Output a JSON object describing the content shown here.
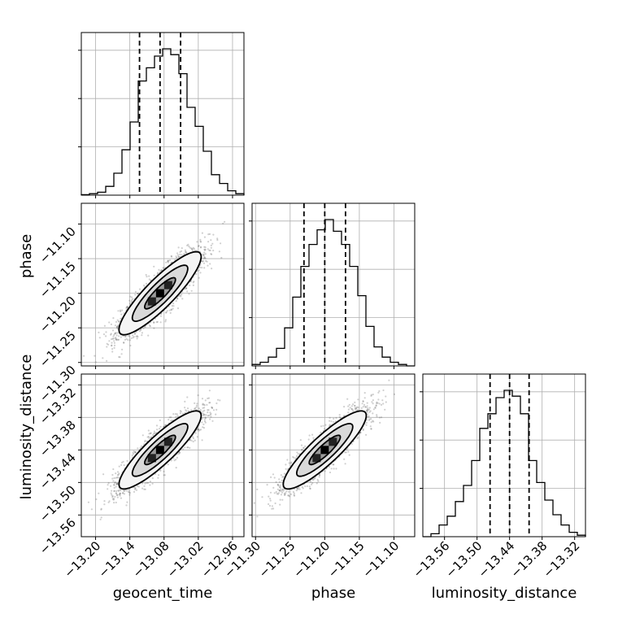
{
  "chart_data": {
    "type": "corner",
    "parameters": [
      "geocent_time",
      "phase",
      "luminosity_distance"
    ],
    "axes": {
      "geocent_time": {
        "label": "geocent_time",
        "range": [
          -13.225,
          -12.94
        ],
        "ticks": [
          -13.2,
          -13.14,
          -13.08,
          -13.02,
          -12.96
        ],
        "tick_labels": [
          "−13.20",
          "−13.14",
          "−13.08",
          "−13.02",
          "−12.96"
        ]
      },
      "phase": {
        "label": "phase",
        "range": [
          -11.305,
          -11.07
        ],
        "ticks": [
          -11.3,
          -11.25,
          -11.2,
          -11.15,
          -11.1
        ],
        "tick_labels": [
          "−11.30",
          "−11.25",
          "−11.20",
          "−11.15",
          "−11.10"
        ]
      },
      "luminosity_distance": {
        "label": "luminosity_distance",
        "range": [
          -13.6,
          -13.3
        ],
        "ticks": [
          -13.56,
          -13.5,
          -13.44,
          -13.38,
          -13.32
        ],
        "tick_labels": [
          "−13.56",
          "−13.50",
          "−13.44",
          "−13.38",
          "−13.32"
        ]
      }
    },
    "marginals": [
      {
        "parameter": "geocent_time",
        "median": -13.087,
        "quantiles": [
          -13.123,
          -13.087,
          -13.051
        ],
        "histogram": [
          0.003,
          0.01,
          0.02,
          0.06,
          0.15,
          0.31,
          0.5,
          0.78,
          0.87,
          0.95,
          1.0,
          0.96,
          0.83,
          0.6,
          0.47,
          0.3,
          0.14,
          0.08,
          0.03,
          0.01
        ]
      },
      {
        "parameter": "phase",
        "median": -11.2,
        "quantiles": [
          -11.23,
          -11.2,
          -11.17
        ],
        "histogram": [
          0.01,
          0.025,
          0.06,
          0.12,
          0.26,
          0.47,
          0.68,
          0.83,
          0.93,
          1.0,
          0.92,
          0.83,
          0.68,
          0.48,
          0.27,
          0.13,
          0.06,
          0.025,
          0.01,
          0.0
        ]
      },
      {
        "parameter": "luminosity_distance",
        "median": -13.44,
        "quantiles": [
          -13.476,
          -13.44,
          -13.404
        ],
        "histogram": [
          0.0,
          0.02,
          0.08,
          0.14,
          0.24,
          0.35,
          0.52,
          0.74,
          0.84,
          0.95,
          1.0,
          0.96,
          0.84,
          0.52,
          0.37,
          0.25,
          0.15,
          0.08,
          0.03,
          0.01
        ]
      }
    ],
    "pairs": [
      {
        "x": "geocent_time",
        "y": "phase",
        "center": [
          -13.087,
          -11.2
        ],
        "std": [
          0.036,
          0.03
        ],
        "correlation": 0.88
      },
      {
        "x": "geocent_time",
        "y": "luminosity_distance",
        "center": [
          -13.087,
          -13.44
        ],
        "std": [
          0.036,
          0.036
        ],
        "correlation": 0.88
      },
      {
        "x": "phase",
        "y": "luminosity_distance",
        "center": [
          -11.2,
          -13.44
        ],
        "std": [
          0.03,
          0.036
        ],
        "correlation": 0.88
      }
    ],
    "grid": true
  }
}
